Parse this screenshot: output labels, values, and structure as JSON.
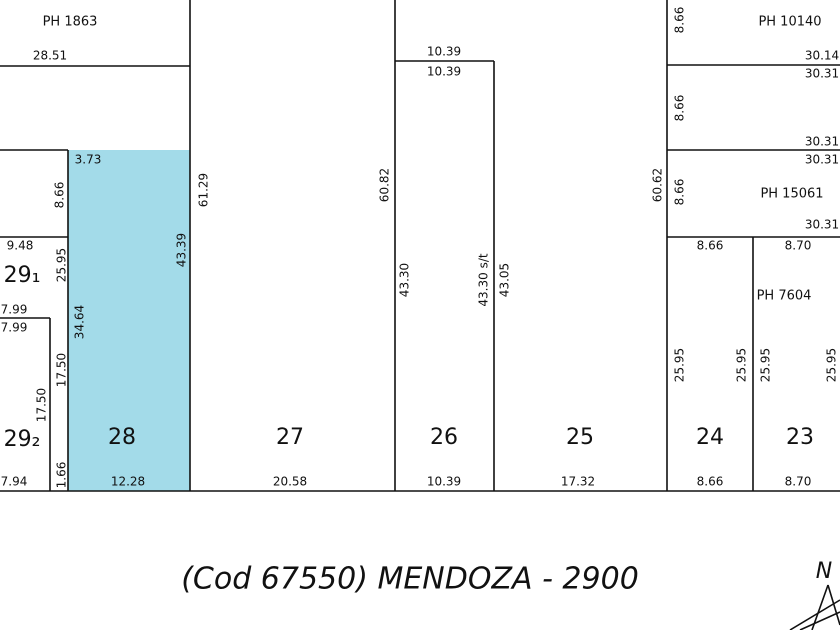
{
  "ph_labels": [
    "PH 1863",
    "PH 10140",
    "PH 15061",
    "PH 7604"
  ],
  "lot_numbers": [
    "29₁",
    "29₂",
    "28",
    "27",
    "26",
    "25",
    "24",
    "23"
  ],
  "dimensions": [
    "28.51",
    "10.39",
    "10.39",
    "8.66",
    "30.14",
    "30.31",
    "8.66",
    "30.31",
    "30.31",
    "3.73",
    "61.29",
    "60.82",
    "60.62",
    "8.66",
    "30.31",
    "8.66",
    "43.39",
    "9.48",
    "25.95",
    "43.30",
    "43.30 s/t",
    "43.05",
    "8.66",
    "8.70",
    "7.99",
    "7.99",
    "34.64",
    "17.50",
    "17.50",
    "25.95",
    "25.95",
    "25.95",
    "25.95",
    "7.94",
    "1.66",
    "12.28",
    "20.58",
    "10.39",
    "17.32",
    "8.66",
    "8.70"
  ],
  "street": "(Cod 67550) MENDOZA - 2900",
  "north": "N"
}
